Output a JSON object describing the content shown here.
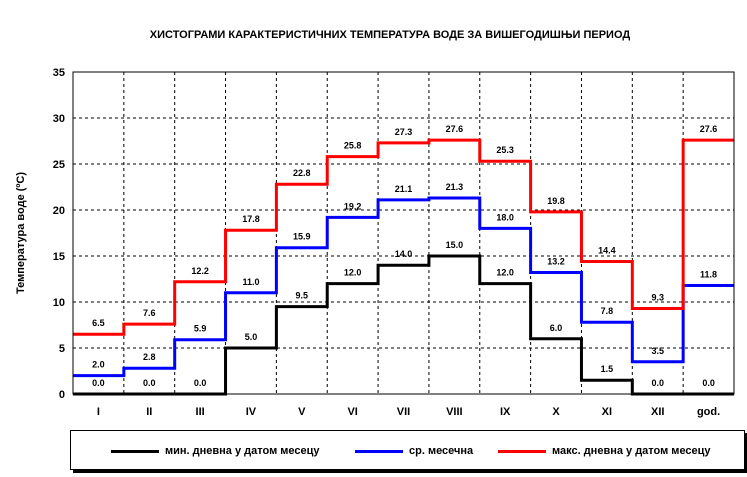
{
  "chart_data": {
    "type": "line",
    "title": "ХИСТОГРАМИ КАРАКТЕРИСТИЧНИХ ТЕМПЕРАТУРА ВОДЕ ЗА ВИШЕГОДИШЊИ ПЕРИОД",
    "xlabel": "",
    "ylabel": "Температура воде (ºC)",
    "ylim": [
      0,
      35
    ],
    "yticks": [
      "0",
      "5",
      "10",
      "15",
      "20",
      "25",
      "30",
      "35"
    ],
    "categories": [
      "I",
      "II",
      "III",
      "IV",
      "V",
      "VI",
      "VII",
      "VIII",
      "IX",
      "X",
      "XI",
      "XII",
      "god."
    ],
    "grid": true,
    "legend_position": "bottom",
    "series": [
      {
        "name": "мин. дневна у датом месецу",
        "color": "#000000",
        "values": [
          0.0,
          0.0,
          0.0,
          5.0,
          9.5,
          12.0,
          14.0,
          15.0,
          12.0,
          6.0,
          1.5,
          0.0,
          0.0
        ],
        "labels": [
          "0.0",
          "0.0",
          "0.0",
          "5.0",
          "9.5",
          "12.0",
          "14.0",
          "15.0",
          "12.0",
          "6.0",
          "1.5",
          "0.0",
          "0.0"
        ]
      },
      {
        "name": "ср. месечна",
        "color": "#0000ff",
        "values": [
          2.0,
          2.8,
          5.9,
          11.0,
          15.9,
          19.2,
          21.1,
          21.3,
          18.0,
          13.2,
          7.8,
          3.5,
          11.8
        ],
        "labels": [
          "2.0",
          "2.8",
          "5.9",
          "11.0",
          "15.9",
          "19.2",
          "21.1",
          "21.3",
          "18.0",
          "13.2",
          "7.8",
          "3.5",
          "11.8"
        ]
      },
      {
        "name": "макс. дневна у датом месецу",
        "color": "#ff0000",
        "values": [
          6.5,
          7.6,
          12.2,
          17.8,
          22.8,
          25.8,
          27.3,
          27.6,
          25.3,
          19.8,
          14.4,
          9.3,
          27.6
        ],
        "labels": [
          "6.5",
          "7.6",
          "12.2",
          "17.8",
          "22.8",
          "25.8",
          "27.3",
          "27.6",
          "25.3",
          "19.8",
          "14.4",
          "9.3",
          "27.6"
        ]
      }
    ]
  }
}
